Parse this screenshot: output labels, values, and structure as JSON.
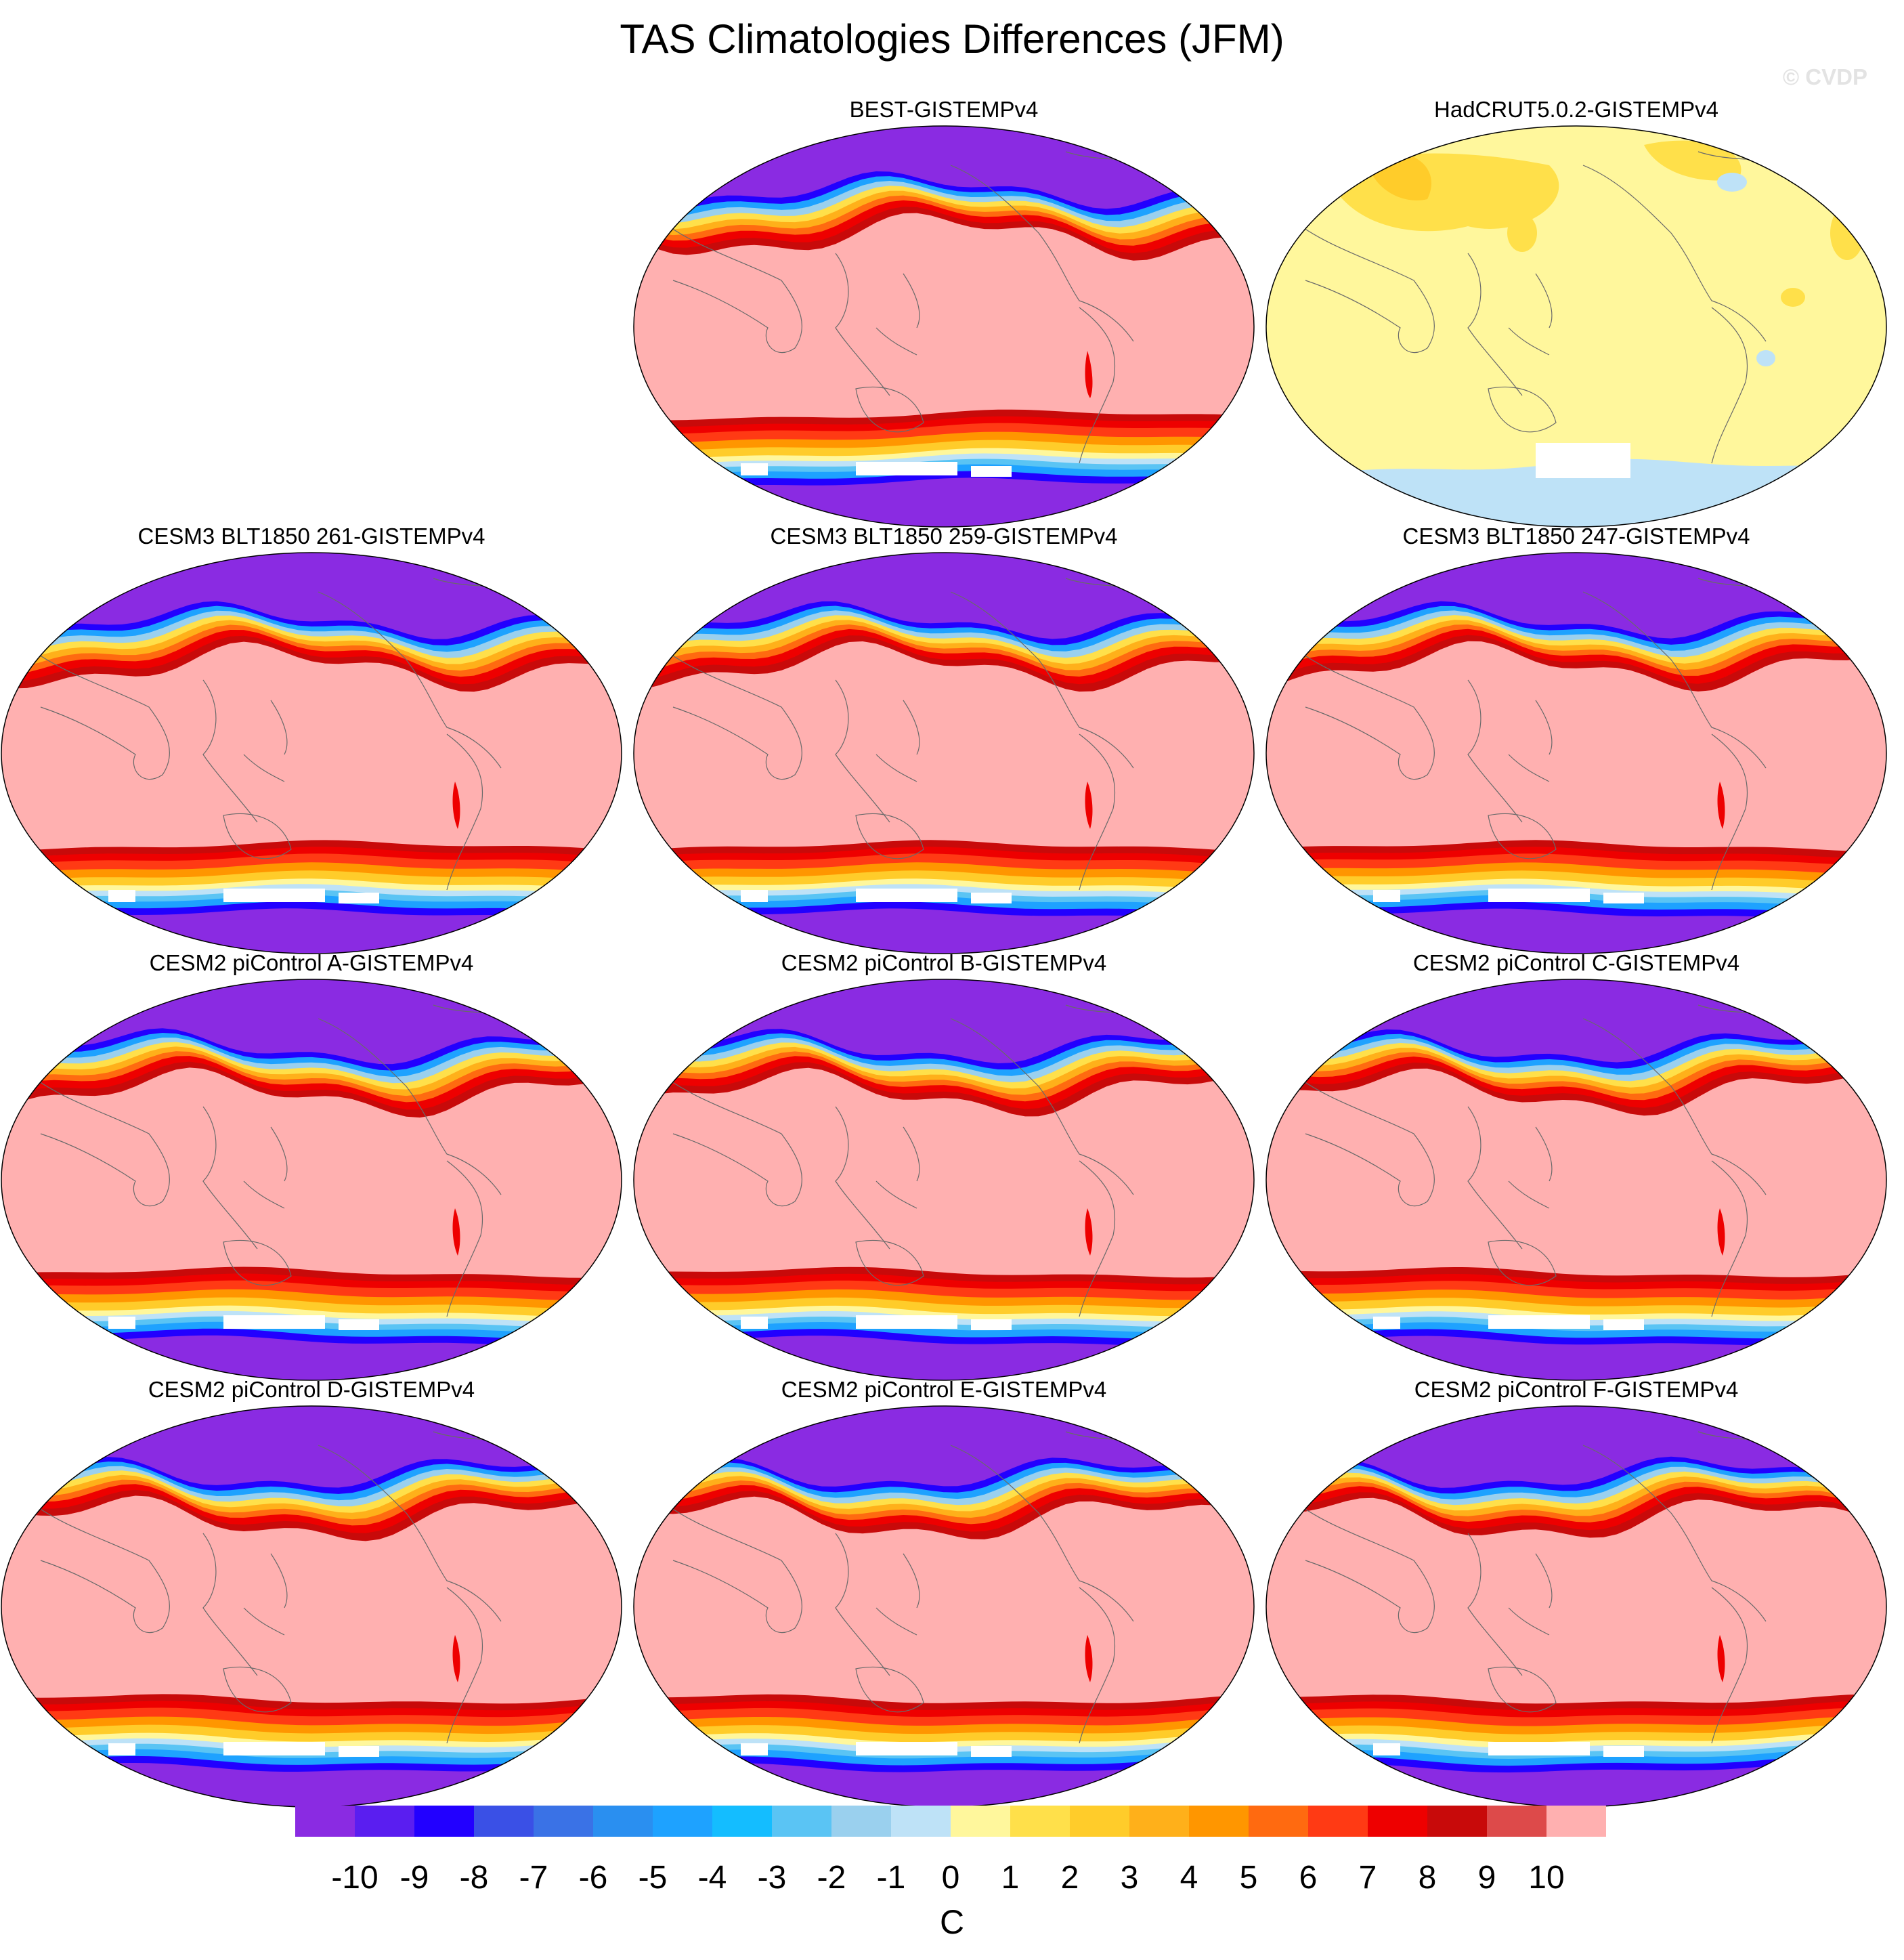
{
  "figure": {
    "title": "TAS Climatologies Differences (JFM)",
    "watermark": "© CVDP"
  },
  "panels": [
    {
      "title": "BEST-GISTEMPv4",
      "pattern": "bias"
    },
    {
      "title": "HadCRUT5.0.2-GISTEMPv4",
      "pattern": "small"
    },
    {
      "title": "CESM3 BLT1850 261-GISTEMPv4",
      "pattern": "bias"
    },
    {
      "title": "CESM3 BLT1850 259-GISTEMPv4",
      "pattern": "bias"
    },
    {
      "title": "CESM3 BLT1850 247-GISTEMPv4",
      "pattern": "bias"
    },
    {
      "title": "CESM2 piControl A-GISTEMPv4",
      "pattern": "bias"
    },
    {
      "title": "CESM2 piControl B-GISTEMPv4",
      "pattern": "bias"
    },
    {
      "title": "CESM2 piControl C-GISTEMPv4",
      "pattern": "bias"
    },
    {
      "title": "CESM2 piControl D-GISTEMPv4",
      "pattern": "bias"
    },
    {
      "title": "CESM2 piControl E-GISTEMPv4",
      "pattern": "bias"
    },
    {
      "title": "CESM2 piControl F-GISTEMPv4",
      "pattern": "bias"
    }
  ],
  "colorbar": {
    "unit": "C",
    "tick_labels": [
      "-10",
      "-9",
      "-8",
      "-7",
      "-6",
      "-5",
      "-4",
      "-3",
      "-2",
      "-1",
      "0",
      "1",
      "2",
      "3",
      "4",
      "5",
      "6",
      "7",
      "8",
      "9",
      "10"
    ],
    "colors": [
      "#8a2be2",
      "#5a1ef0",
      "#2200ff",
      "#3a50e6",
      "#3a72e6",
      "#2a8ff0",
      "#1ea2ff",
      "#14bdff",
      "#5ac4f4",
      "#9ad0ee",
      "#bee2f7",
      "#fff79c",
      "#ffe04a",
      "#ffcc2a",
      "#ffb01a",
      "#ff9600",
      "#ff6a10",
      "#ff3a14",
      "#ee0000",
      "#c80a0a",
      "#dd4a4a",
      "#ffb0b0"
    ]
  }
}
